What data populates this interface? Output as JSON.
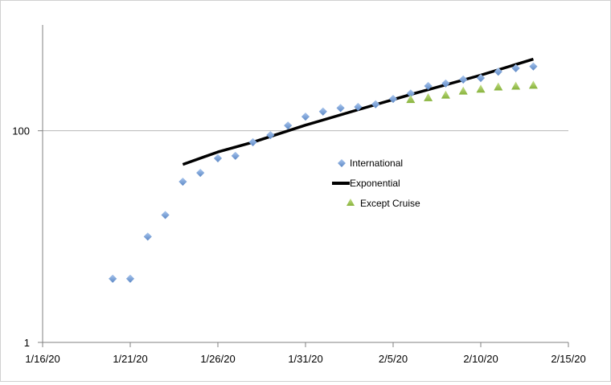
{
  "chart_data": {
    "type": "scatter",
    "title": "",
    "xlabel": "",
    "ylabel": "",
    "x_scale": "date",
    "y_scale": "log",
    "xlim": [
      "2020-01-16",
      "2020-02-15"
    ],
    "ylim": [
      1,
      1000
    ],
    "x_ticks": [
      "1/16/20",
      "1/21/20",
      "1/26/20",
      "1/31/20",
      "2/5/20",
      "2/10/20",
      "2/15/20"
    ],
    "y_ticks": [
      "1",
      "100"
    ],
    "grid": "horizontal major gridlines",
    "legend_position": "center-right",
    "series": [
      {
        "name": "International",
        "style": "markers",
        "marker": "diamond",
        "color": "#6f9bd4",
        "points": [
          {
            "x": "2020-01-20",
            "y": 4
          },
          {
            "x": "2020-01-21",
            "y": 4
          },
          {
            "x": "2020-01-22",
            "y": 10
          },
          {
            "x": "2020-01-23",
            "y": 16
          },
          {
            "x": "2020-01-24",
            "y": 33
          },
          {
            "x": "2020-01-25",
            "y": 40
          },
          {
            "x": "2020-01-26",
            "y": 55
          },
          {
            "x": "2020-01-27",
            "y": 58
          },
          {
            "x": "2020-01-28",
            "y": 78
          },
          {
            "x": "2020-01-29",
            "y": 91
          },
          {
            "x": "2020-01-30",
            "y": 112
          },
          {
            "x": "2020-01-31",
            "y": 136
          },
          {
            "x": "2020-02-01",
            "y": 152
          },
          {
            "x": "2020-02-02",
            "y": 164
          },
          {
            "x": "2020-02-03",
            "y": 168
          },
          {
            "x": "2020-02-04",
            "y": 178
          },
          {
            "x": "2020-02-05",
            "y": 200
          },
          {
            "x": "2020-02-06",
            "y": 225
          },
          {
            "x": "2020-02-07",
            "y": 265
          },
          {
            "x": "2020-02-08",
            "y": 280
          },
          {
            "x": "2020-02-09",
            "y": 305
          },
          {
            "x": "2020-02-10",
            "y": 315
          },
          {
            "x": "2020-02-11",
            "y": 362
          },
          {
            "x": "2020-02-12",
            "y": 390
          },
          {
            "x": "2020-02-13",
            "y": 405
          }
        ]
      },
      {
        "name": "Exponential",
        "style": "line",
        "color": "#000000",
        "points": [
          {
            "x": "2020-01-24",
            "y": 48
          },
          {
            "x": "2020-01-26",
            "y": 63
          },
          {
            "x": "2020-01-28",
            "y": 78
          },
          {
            "x": "2020-01-31",
            "y": 113
          },
          {
            "x": "2020-02-03",
            "y": 158
          },
          {
            "x": "2020-02-06",
            "y": 220
          },
          {
            "x": "2020-02-10",
            "y": 335
          },
          {
            "x": "2020-02-13",
            "y": 475
          }
        ]
      },
      {
        "name": "Except Cruise",
        "style": "markers",
        "marker": "triangle",
        "color": "#9bc54b",
        "points": [
          {
            "x": "2020-02-06",
            "y": 198
          },
          {
            "x": "2020-02-07",
            "y": 206
          },
          {
            "x": "2020-02-08",
            "y": 218
          },
          {
            "x": "2020-02-09",
            "y": 238
          },
          {
            "x": "2020-02-10",
            "y": 248
          },
          {
            "x": "2020-02-11",
            "y": 260
          },
          {
            "x": "2020-02-12",
            "y": 265
          },
          {
            "x": "2020-02-13",
            "y": 270
          }
        ]
      }
    ]
  }
}
